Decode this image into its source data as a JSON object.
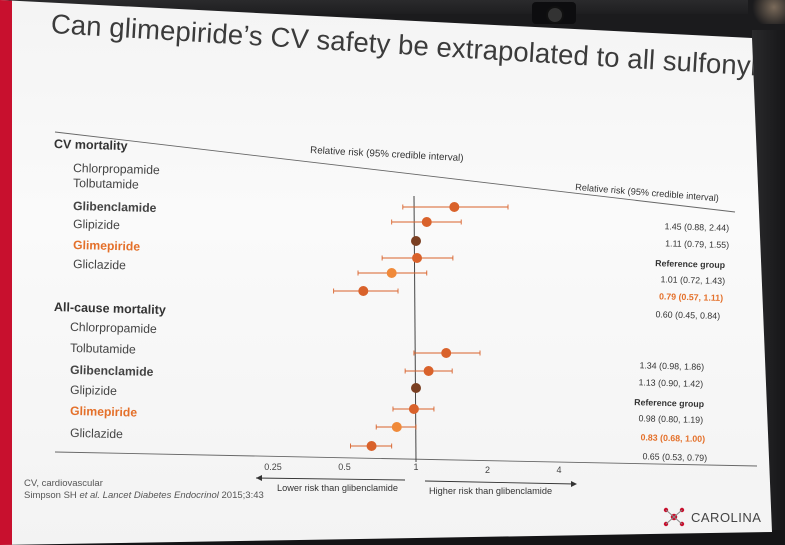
{
  "slide": {
    "title": "Can glimepiride’s CV safety be extrapolated to all sulfonylureas?",
    "brand_color": "#c8102e",
    "highlight_color": "#e4702a"
  },
  "header": {
    "col_left": "Relative risk (95% credible interval)",
    "col_right": "Relative risk (95% credible interval)"
  },
  "sections": [
    {
      "label": "CV mortality",
      "rows": [
        {
          "drug": "Chlorpropamide",
          "bold": false,
          "highlight": false,
          "rr": 1.45,
          "lo": 0.88,
          "hi": 2.44,
          "text": "1.45 (0.88, 2.44)"
        },
        {
          "drug": "Tolbutamide",
          "bold": false,
          "highlight": false,
          "rr": 1.11,
          "lo": 0.79,
          "hi": 1.55,
          "text": "1.11 (0.79, 1.55)"
        },
        {
          "drug": "Glibenclamide",
          "bold": true,
          "highlight": false,
          "rr": 1.0,
          "lo": null,
          "hi": null,
          "text": "Reference group"
        },
        {
          "drug": "Glipizide",
          "bold": false,
          "highlight": false,
          "rr": 1.01,
          "lo": 0.72,
          "hi": 1.43,
          "text": "1.01 (0.72, 1.43)"
        },
        {
          "drug": "Glimepiride",
          "bold": true,
          "highlight": true,
          "rr": 0.79,
          "lo": 0.57,
          "hi": 1.11,
          "text": "0.79 (0.57, 1.11)"
        },
        {
          "drug": "Gliclazide",
          "bold": false,
          "highlight": false,
          "rr": 0.6,
          "lo": 0.45,
          "hi": 0.84,
          "text": "0.60 (0.45, 0.84)"
        }
      ]
    },
    {
      "label": "All-cause mortality",
      "rows": [
        {
          "drug": "Chlorpropamide",
          "bold": false,
          "highlight": false,
          "rr": 1.34,
          "lo": 0.98,
          "hi": 1.86,
          "text": "1.34 (0.98, 1.86)"
        },
        {
          "drug": "Tolbutamide",
          "bold": false,
          "highlight": false,
          "rr": 1.13,
          "lo": 0.9,
          "hi": 1.42,
          "text": "1.13 (0.90, 1.42)"
        },
        {
          "drug": "Glibenclamide",
          "bold": true,
          "highlight": false,
          "rr": 1.0,
          "lo": null,
          "hi": null,
          "text": "Reference group"
        },
        {
          "drug": "Glipizide",
          "bold": false,
          "highlight": false,
          "rr": 0.98,
          "lo": 0.8,
          "hi": 1.19,
          "text": "0.98 (0.80, 1.19)"
        },
        {
          "drug": "Glimepiride",
          "bold": true,
          "highlight": true,
          "rr": 0.83,
          "lo": 0.68,
          "hi": 1.0,
          "text": "0.83 (0.68, 1.00)"
        },
        {
          "drug": "Gliclazide",
          "bold": false,
          "highlight": false,
          "rr": 0.65,
          "lo": 0.53,
          "hi": 0.79,
          "text": "0.65 (0.53, 0.79)"
        }
      ]
    }
  ],
  "axis": {
    "ticks": [
      {
        "value": 0.25,
        "label": "0.25"
      },
      {
        "value": 0.5,
        "label": "0.5"
      },
      {
        "value": 1,
        "label": "1"
      },
      {
        "value": 2,
        "label": "2"
      },
      {
        "value": 4,
        "label": "4"
      }
    ],
    "lower_label": "Lower risk than glibenclamide",
    "higher_label": "Higher risk than glibenclamide",
    "scale": "log"
  },
  "footnote": {
    "abbrev": "CV, cardiovascular",
    "ref_authors": "Simpson SH ",
    "ref_etal": "et al.",
    "ref_journal": " Lancet Diabetes Endocrinol",
    "ref_rest": " 2015;3:43"
  },
  "logo": {
    "text": "CAROLINA",
    "icon": "molecule-icon"
  }
}
